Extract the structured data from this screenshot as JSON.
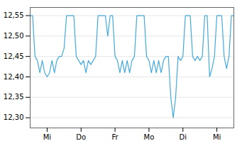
{
  "chart_data": {
    "type": "line",
    "x": [
      0,
      1,
      2,
      3,
      4,
      5,
      6,
      7,
      8,
      9,
      10,
      11,
      12,
      13,
      14,
      15,
      16,
      17,
      18,
      19,
      20,
      21,
      22,
      23,
      24,
      25,
      26,
      27,
      28,
      29,
      30,
      31,
      32,
      33,
      34,
      35,
      36,
      37,
      38,
      39,
      40,
      41,
      42,
      43,
      44,
      45,
      46,
      47,
      48,
      49,
      50,
      51,
      52,
      53,
      54,
      55,
      56,
      57,
      58,
      59,
      60,
      61,
      62,
      63,
      64,
      65,
      66,
      67,
      68,
      69,
      70,
      71,
      72,
      73,
      74,
      75,
      76,
      77,
      78,
      79,
      80,
      81,
      82,
      83,
      84
    ],
    "values": [
      12.55,
      12.55,
      12.45,
      12.44,
      12.41,
      12.44,
      12.41,
      12.4,
      12.41,
      12.44,
      12.41,
      12.44,
      12.45,
      12.45,
      12.47,
      12.55,
      12.55,
      12.55,
      12.55,
      12.45,
      12.44,
      12.43,
      12.44,
      12.41,
      12.44,
      12.43,
      12.44,
      12.45,
      12.55,
      12.55,
      12.55,
      12.55,
      12.5,
      12.55,
      12.55,
      12.45,
      12.44,
      12.41,
      12.44,
      12.41,
      12.44,
      12.41,
      12.44,
      12.45,
      12.55,
      12.55,
      12.55,
      12.55,
      12.45,
      12.44,
      12.41,
      12.44,
      12.41,
      12.44,
      12.41,
      12.44,
      12.45,
      12.45,
      12.35,
      12.3,
      12.35,
      12.45,
      12.44,
      12.45,
      12.55,
      12.55,
      12.55,
      12.45,
      12.44,
      12.45,
      12.44,
      12.45,
      12.55,
      12.55,
      12.4,
      12.42,
      12.45,
      12.55,
      12.55,
      12.55,
      12.45,
      12.42,
      12.45,
      12.55,
      12.55
    ],
    "color": "#44aadd",
    "xlim": [
      0,
      84
    ],
    "xticks": [
      {
        "value": 7,
        "label": "Mi"
      },
      {
        "value": 21,
        "label": "Do"
      },
      {
        "value": 35,
        "label": "Fr"
      },
      {
        "value": 49,
        "label": "Mo"
      },
      {
        "value": 63,
        "label": "Di"
      },
      {
        "value": 77,
        "label": "Mi"
      }
    ],
    "ylim": [
      12.275,
      12.57
    ],
    "yticks": [
      {
        "value": 12.3,
        "label": "12,30"
      },
      {
        "value": 12.35,
        "label": "12,35"
      },
      {
        "value": 12.4,
        "label": "12,40"
      },
      {
        "value": 12.45,
        "label": "12,45"
      },
      {
        "value": 12.5,
        "label": "12,50"
      },
      {
        "value": 12.55,
        "label": "12,55"
      }
    ],
    "grid": "y"
  }
}
